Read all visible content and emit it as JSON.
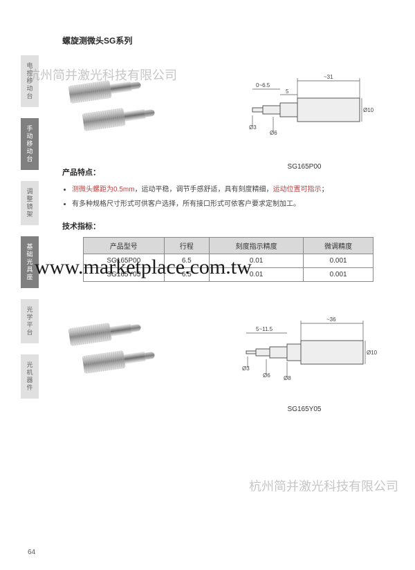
{
  "title": "螺旋测微头SG系列",
  "sideTabs": [
    {
      "label": "电控移动台",
      "active": false
    },
    {
      "label": "手动移动台",
      "active": true
    },
    {
      "label": "调整镜架",
      "active": false
    },
    {
      "label": "基础光具座",
      "active": true
    },
    {
      "label": "光学平台",
      "active": false
    },
    {
      "label": "光机器件",
      "active": false
    }
  ],
  "caption1": "SG165P00",
  "caption2": "SG165Y05",
  "featuresHeading": "产品特点：",
  "features": [
    "测微头螺距为0.5mm，运动平稳，调节手感舒适，具有刻度精细，运动位置可指示；",
    "有多种规格尺寸形式可供客户选择，所有接口形式可依客户要求定制加工。"
  ],
  "specHeading": "技术指标：",
  "specTable": {
    "columns": [
      "产品型号",
      "行程",
      "刻度指示精度",
      "微调精度"
    ],
    "rows": [
      [
        "SG165P00",
        "6.5",
        "0.01",
        "0.001"
      ],
      [
        "SG165Y05",
        "6.5",
        "0.01",
        "0.001"
      ]
    ]
  },
  "diagram1": {
    "overall": "~31",
    "travel": "0~6.5",
    "dim_a": "5",
    "d_tip": "Ø3",
    "d_shaft": "Ø6",
    "d_body": "Ø10"
  },
  "diagram2": {
    "overall": "~36",
    "travel": "5~11.5",
    "d_tip": "Ø3",
    "d_shaft": "Ø6",
    "d_mid": "Ø8",
    "d_body": "Ø10"
  },
  "watermark_cn": "杭州简并激光科技有限公司",
  "watermark_url": "www.marketplace.com.tw",
  "pageNumber": "64"
}
